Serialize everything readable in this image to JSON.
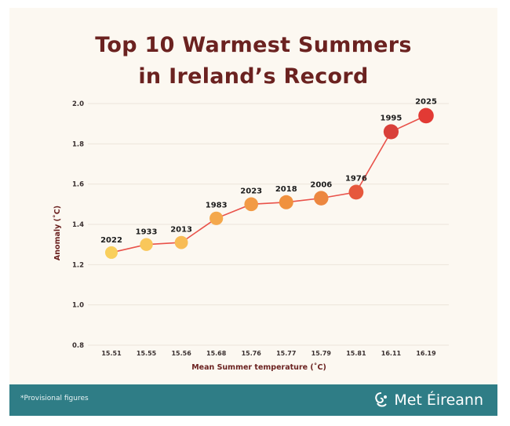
{
  "title_lines": [
    "Top 10 Warmest Summers",
    "in Ireland’s Record"
  ],
  "footnote": "*Provisional figures",
  "brand": {
    "name": "Met Éireann",
    "icon": "met-eireann-logo-icon"
  },
  "colors": {
    "title": "#6b2220",
    "line": "#e9524a",
    "footer": "#2f7d86",
    "point_low": "#f9cf5c",
    "point_mid": "#f0913e",
    "point_high": "#e23a34"
  },
  "chart_data": {
    "type": "line",
    "xlabel": "Mean Summer temperature (˚C)",
    "ylabel": "Anomaly (˚C)",
    "ylim": [
      0.8,
      2.0
    ],
    "yticks": [
      "0.8",
      "1.0",
      "1.2",
      "1.4",
      "1.6",
      "1.8",
      "2.0"
    ],
    "grid": true,
    "categories": [
      "15.51",
      "15.55",
      "15.56",
      "15.68",
      "15.76",
      "15.77",
      "15.79",
      "15.81",
      "16.11",
      "16.19"
    ],
    "years": [
      "2022",
      "1933",
      "2013",
      "1983",
      "2023",
      "2018",
      "2006",
      "1976",
      "1995",
      "2025"
    ],
    "values": [
      1.26,
      1.3,
      1.31,
      1.43,
      1.5,
      1.51,
      1.53,
      1.56,
      1.86,
      1.94
    ],
    "point_colors": [
      "#f9cf5c",
      "#f9c75a",
      "#f8bc55",
      "#f4a84c",
      "#f29a45",
      "#f0913e",
      "#ec8740",
      "#e6583c",
      "#d9403a",
      "#e23a34"
    ]
  }
}
